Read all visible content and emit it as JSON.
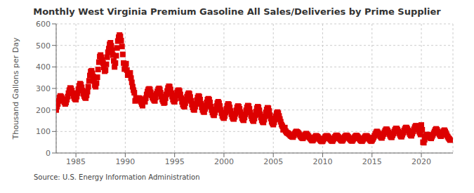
{
  "chart_data": {
    "type": "scatter",
    "title": "Monthly West Virginia Premium Gasoline All Sales/Deliveries by Prime Supplier",
    "y_label": "Thousand Gallons per Day",
    "annotations": [
      "Source: U.S. Energy Information Administration"
    ],
    "color": "#dd0000",
    "marker": "square",
    "grid": true,
    "ylim": [
      0,
      600
    ],
    "yticks": [
      0,
      100,
      200,
      300,
      400,
      500,
      600
    ],
    "xlim": [
      1983.0,
      2023.2
    ],
    "xticks": [
      1985,
      1990,
      1995,
      2000,
      2005,
      2010,
      2015,
      2020
    ],
    "x": [
      1983.0,
      1983.083,
      1983.167,
      1983.25,
      1983.333,
      1983.417,
      1983.5,
      1983.583,
      1983.667,
      1983.75,
      1983.833,
      1983.917,
      1984.0,
      1984.083,
      1984.167,
      1984.25,
      1984.333,
      1984.417,
      1984.5,
      1984.583,
      1984.667,
      1984.75,
      1984.833,
      1984.917,
      1985.0,
      1985.083,
      1985.167,
      1985.25,
      1985.333,
      1985.417,
      1985.5,
      1985.583,
      1985.667,
      1985.75,
      1985.833,
      1985.917,
      1986.0,
      1986.083,
      1986.167,
      1986.25,
      1986.333,
      1986.417,
      1986.5,
      1986.583,
      1986.667,
      1986.75,
      1986.833,
      1986.917,
      1987.0,
      1987.083,
      1987.167,
      1987.25,
      1987.333,
      1987.417,
      1987.5,
      1987.583,
      1987.667,
      1987.75,
      1987.833,
      1987.917,
      1988.0,
      1988.083,
      1988.167,
      1988.25,
      1988.333,
      1988.417,
      1988.5,
      1988.583,
      1988.667,
      1988.75,
      1988.833,
      1988.917,
      1989.0,
      1989.083,
      1989.167,
      1989.25,
      1989.333,
      1989.417,
      1989.5,
      1989.583,
      1989.667,
      1989.75,
      1989.833,
      1989.917,
      1990.0,
      1990.083,
      1990.167,
      1990.25,
      1990.333,
      1990.417,
      1990.5,
      1990.583,
      1990.667,
      1990.75,
      1990.833,
      1990.917,
      1991.0,
      1991.083,
      1991.167,
      1991.25,
      1991.333,
      1991.417,
      1991.5,
      1991.583,
      1991.667,
      1991.75,
      1991.833,
      1991.917,
      1992.0,
      1992.083,
      1992.167,
      1992.25,
      1992.333,
      1992.417,
      1992.5,
      1992.583,
      1992.667,
      1992.75,
      1992.833,
      1992.917,
      1993.0,
      1993.083,
      1993.167,
      1993.25,
      1993.333,
      1993.417,
      1993.5,
      1993.583,
      1993.667,
      1993.75,
      1993.833,
      1993.917,
      1994.0,
      1994.083,
      1994.167,
      1994.25,
      1994.333,
      1994.417,
      1994.5,
      1994.583,
      1994.667,
      1994.75,
      1994.833,
      1994.917,
      1995.0,
      1995.083,
      1995.167,
      1995.25,
      1995.333,
      1995.417,
      1995.5,
      1995.583,
      1995.667,
      1995.75,
      1995.833,
      1995.917,
      1996.0,
      1996.083,
      1996.167,
      1996.25,
      1996.333,
      1996.417,
      1996.5,
      1996.583,
      1996.667,
      1996.75,
      1996.833,
      1996.917,
      1997.0,
      1997.083,
      1997.167,
      1997.25,
      1997.333,
      1997.417,
      1997.5,
      1997.583,
      1997.667,
      1997.75,
      1997.833,
      1997.917,
      1998.0,
      1998.083,
      1998.167,
      1998.25,
      1998.333,
      1998.417,
      1998.5,
      1998.583,
      1998.667,
      1998.75,
      1998.833,
      1998.917,
      1999.0,
      1999.083,
      1999.167,
      1999.25,
      1999.333,
      1999.417,
      1999.5,
      1999.583,
      1999.667,
      1999.75,
      1999.833,
      1999.917,
      2000.0,
      2000.083,
      2000.167,
      2000.25,
      2000.333,
      2000.417,
      2000.5,
      2000.583,
      2000.667,
      2000.75,
      2000.833,
      2000.917,
      2001.0,
      2001.083,
      2001.167,
      2001.25,
      2001.333,
      2001.417,
      2001.5,
      2001.583,
      2001.667,
      2001.75,
      2001.833,
      2001.917,
      2002.0,
      2002.083,
      2002.167,
      2002.25,
      2002.333,
      2002.417,
      2002.5,
      2002.583,
      2002.667,
      2002.75,
      2002.833,
      2002.917,
      2003.0,
      2003.083,
      2003.167,
      2003.25,
      2003.333,
      2003.417,
      2003.5,
      2003.583,
      2003.667,
      2003.75,
      2003.833,
      2003.917,
      2004.0,
      2004.083,
      2004.167,
      2004.25,
      2004.333,
      2004.417,
      2004.5,
      2004.583,
      2004.667,
      2004.75,
      2004.833,
      2004.917,
      2005.0,
      2005.083,
      2005.167,
      2005.25,
      2005.333,
      2005.417,
      2005.5,
      2005.583,
      2005.667,
      2005.75,
      2005.833,
      2005.917,
      2006.0,
      2006.083,
      2006.167,
      2006.25,
      2006.333,
      2006.417,
      2006.5,
      2006.583,
      2006.667,
      2006.75,
      2006.833,
      2006.917,
      2007.0,
      2007.083,
      2007.167,
      2007.25,
      2007.333,
      2007.417,
      2007.5,
      2007.583,
      2007.667,
      2007.75,
      2007.833,
      2007.917,
      2008.0,
      2008.083,
      2008.167,
      2008.25,
      2008.333,
      2008.417,
      2008.5,
      2008.583,
      2008.667,
      2008.75,
      2008.833,
      2008.917,
      2009.0,
      2009.083,
      2009.167,
      2009.25,
      2009.333,
      2009.417,
      2009.5,
      2009.583,
      2009.667,
      2009.75,
      2009.833,
      2009.917,
      2010.0,
      2010.083,
      2010.167,
      2010.25,
      2010.333,
      2010.417,
      2010.5,
      2010.583,
      2010.667,
      2010.75,
      2010.833,
      2010.917,
      2011.0,
      2011.083,
      2011.167,
      2011.25,
      2011.333,
      2011.417,
      2011.5,
      2011.583,
      2011.667,
      2011.75,
      2011.833,
      2011.917,
      2012.0,
      2012.083,
      2012.167,
      2012.25,
      2012.333,
      2012.417,
      2012.5,
      2012.583,
      2012.667,
      2012.75,
      2012.833,
      2012.917,
      2013.0,
      2013.083,
      2013.167,
      2013.25,
      2013.333,
      2013.417,
      2013.5,
      2013.583,
      2013.667,
      2013.75,
      2013.833,
      2013.917,
      2014.0,
      2014.083,
      2014.167,
      2014.25,
      2014.333,
      2014.417,
      2014.5,
      2014.583,
      2014.667,
      2014.75,
      2014.833,
      2014.917,
      2015.0,
      2015.083,
      2015.167,
      2015.25,
      2015.333,
      2015.417,
      2015.5,
      2015.583,
      2015.667,
      2015.75,
      2015.833,
      2015.917,
      2016.0,
      2016.083,
      2016.167,
      2016.25,
      2016.333,
      2016.417,
      2016.5,
      2016.583,
      2016.667,
      2016.75,
      2016.833,
      2016.917,
      2017.0,
      2017.083,
      2017.167,
      2017.25,
      2017.333,
      2017.417,
      2017.5,
      2017.583,
      2017.667,
      2017.75,
      2017.833,
      2017.917,
      2018.0,
      2018.083,
      2018.167,
      2018.25,
      2018.333,
      2018.417,
      2018.5,
      2018.583,
      2018.667,
      2018.75,
      2018.833,
      2018.917,
      2019.0,
      2019.083,
      2019.167,
      2019.25,
      2019.333,
      2019.417,
      2019.5,
      2019.583,
      2019.667,
      2019.75,
      2019.833,
      2019.917,
      2020.0,
      2020.083,
      2020.167,
      2020.25,
      2020.333,
      2020.417,
      2020.5,
      2020.583,
      2020.667,
      2020.75,
      2020.833,
      2020.917,
      2021.0,
      2021.083,
      2021.167,
      2021.25,
      2021.333,
      2021.417,
      2021.5,
      2021.583,
      2021.667,
      2021.75,
      2021.833,
      2021.917,
      2022.0,
      2022.083,
      2022.167,
      2022.25,
      2022.333,
      2022.417,
      2022.5,
      2022.583,
      2022.667,
      2022.75,
      2022.833,
      2022.917
    ],
    "values": [
      200,
      215,
      228,
      242,
      258,
      265,
      262,
      255,
      248,
      242,
      235,
      228,
      235,
      248,
      262,
      278,
      292,
      302,
      300,
      290,
      278,
      265,
      256,
      250,
      248,
      262,
      278,
      296,
      312,
      322,
      318,
      305,
      290,
      275,
      265,
      258,
      255,
      268,
      285,
      308,
      335,
      360,
      378,
      382,
      370,
      355,
      335,
      315,
      308,
      325,
      352,
      388,
      422,
      448,
      455,
      445,
      432,
      418,
      398,
      380,
      385,
      412,
      445,
      468,
      485,
      505,
      512,
      498,
      478,
      455,
      428,
      400,
      418,
      452,
      488,
      520,
      538,
      548,
      542,
      522,
      495,
      458,
      418,
      390,
      395,
      415,
      385,
      362,
      372,
      368,
      372,
      348,
      328,
      308,
      292,
      280,
      242,
      255,
      252,
      245,
      255,
      255,
      252,
      238,
      228,
      220,
      248,
      240,
      238,
      255,
      272,
      285,
      295,
      298,
      295,
      282,
      268,
      258,
      252,
      245,
      242,
      258,
      275,
      285,
      295,
      300,
      295,
      280,
      262,
      248,
      240,
      232,
      235,
      255,
      272,
      288,
      302,
      310,
      308,
      295,
      278,
      262,
      248,
      240,
      238,
      252,
      268,
      282,
      290,
      292,
      288,
      272,
      255,
      238,
      225,
      218,
      215,
      232,
      248,
      262,
      272,
      278,
      275,
      260,
      242,
      225,
      212,
      202,
      200,
      215,
      228,
      245,
      258,
      265,
      262,
      248,
      228,
      212,
      200,
      192,
      190,
      205,
      220,
      235,
      248,
      252,
      248,
      235,
      215,
      200,
      188,
      178,
      175,
      188,
      202,
      218,
      232,
      238,
      232,
      218,
      200,
      185,
      172,
      165,
      162,
      172,
      188,
      205,
      220,
      228,
      225,
      212,
      195,
      180,
      168,
      160,
      158,
      168,
      182,
      198,
      212,
      218,
      215,
      205,
      190,
      175,
      162,
      155,
      152,
      165,
      180,
      198,
      212,
      220,
      218,
      205,
      188,
      172,
      160,
      152,
      148,
      160,
      175,
      192,
      208,
      215,
      212,
      198,
      180,
      165,
      152,
      145,
      142,
      155,
      170,
      188,
      202,
      210,
      208,
      195,
      175,
      160,
      145,
      138,
      132,
      142,
      155,
      170,
      185,
      190,
      185,
      172,
      158,
      145,
      132,
      125,
      108,
      115,
      118,
      102,
      96,
      93,
      92,
      88,
      84,
      80,
      78,
      75,
      74,
      82,
      90,
      96,
      100,
      98,
      95,
      90,
      84,
      78,
      73,
      70,
      68,
      74,
      80,
      86,
      90,
      86,
      82,
      77,
      72,
      67,
      63,
      58,
      58,
      63,
      70,
      76,
      80,
      78,
      75,
      70,
      65,
      60,
      56,
      54,
      55,
      62,
      68,
      74,
      78,
      80,
      78,
      74,
      69,
      64,
      60,
      56,
      55,
      62,
      68,
      75,
      80,
      82,
      80,
      75,
      70,
      65,
      60,
      57,
      57,
      63,
      70,
      76,
      80,
      82,
      80,
      75,
      70,
      65,
      60,
      57,
      56,
      62,
      68,
      74,
      79,
      81,
      79,
      74,
      69,
      64,
      59,
      56,
      55,
      61,
      67,
      73,
      78,
      80,
      78,
      73,
      68,
      63,
      58,
      55,
      58,
      65,
      72,
      80,
      88,
      96,
      100,
      96,
      90,
      84,
      78,
      72,
      70,
      79,
      88,
      96,
      104,
      110,
      110,
      104,
      96,
      88,
      80,
      74,
      73,
      82,
      90,
      100,
      108,
      114,
      114,
      108,
      100,
      92,
      84,
      77,
      76,
      85,
      94,
      104,
      112,
      118,
      118,
      112,
      104,
      96,
      88,
      82,
      80,
      90,
      100,
      110,
      120,
      126,
      126,
      120,
      110,
      102,
      94,
      86,
      130,
      108,
      50,
      48,
      62,
      75,
      82,
      86,
      84,
      78,
      74,
      70,
      68,
      76,
      84,
      92,
      100,
      108,
      112,
      108,
      100,
      94,
      86,
      80,
      78,
      86,
      95,
      102,
      106,
      100,
      92,
      83,
      76,
      70,
      65,
      60
    ]
  }
}
